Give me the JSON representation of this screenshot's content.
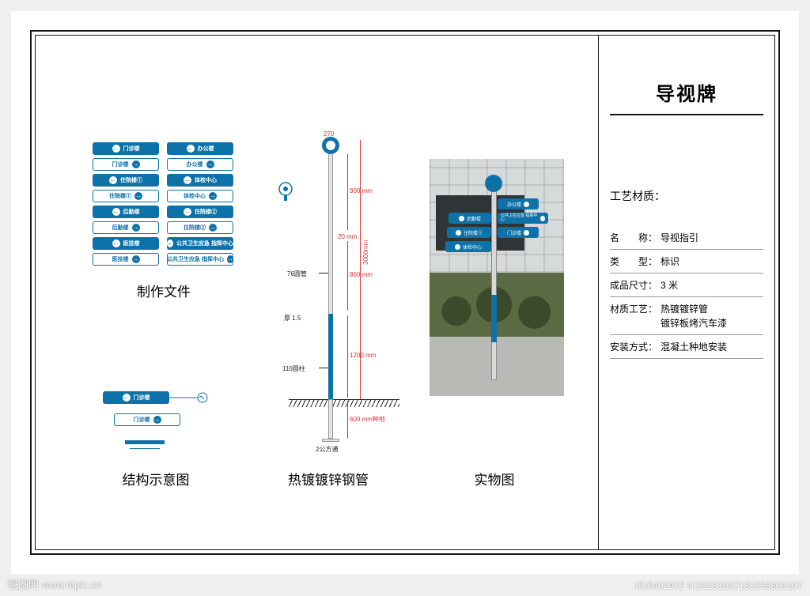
{
  "colors": {
    "brand": "#0d72a8",
    "frame": "#161616",
    "dim": "#d33333",
    "page_bg": "#efefef",
    "sheet_bg": "#ffffff"
  },
  "title": "导视牌",
  "section_heading": "工艺材质：",
  "info_rows": [
    {
      "label": "名　　称：",
      "value": "导视指引"
    },
    {
      "label": "类　　型：",
      "value": "标识"
    },
    {
      "label": "成品尺寸：",
      "value": "3 米"
    },
    {
      "label": "材质工艺：",
      "value": "热镀镀锌管\n镀锌板烤汽车漆"
    },
    {
      "label": "安装方式：",
      "value": "混凝土种地安装"
    }
  ],
  "captions": {
    "plates": "制作文件",
    "structure": "结构示意图",
    "pole": "热镀镀锌钢管",
    "photo": "实物图"
  },
  "plate_groups": [
    [
      {
        "text": "门诊楼",
        "dir": "left",
        "style": "solid"
      },
      {
        "text": "办公楼",
        "dir": "left",
        "style": "solid"
      }
    ],
    [
      {
        "text": "门诊楼",
        "dir": "right",
        "style": "outline"
      },
      {
        "text": "办公楼",
        "dir": "right",
        "style": "outline"
      }
    ],
    [
      {
        "text": "住院楼①",
        "dir": "left",
        "style": "solid"
      },
      {
        "text": "体检中心",
        "dir": "left",
        "style": "solid"
      }
    ],
    [
      {
        "text": "住院楼①",
        "dir": "right",
        "style": "outline"
      },
      {
        "text": "体检中心",
        "dir": "right",
        "style": "outline"
      }
    ],
    [
      {
        "text": "后勤楼",
        "dir": "left",
        "style": "solid"
      },
      {
        "text": "住院楼②",
        "dir": "left",
        "style": "solid"
      }
    ],
    [
      {
        "text": "后勤楼",
        "dir": "right",
        "style": "outline"
      },
      {
        "text": "住院楼②",
        "dir": "right",
        "style": "outline"
      }
    ],
    [
      {
        "text": "医技楼",
        "dir": "left",
        "style": "solid"
      },
      {
        "text": "公共卫生应急\n指挥中心",
        "dir": "left",
        "style": "solid"
      }
    ],
    [
      {
        "text": "医技楼",
        "dir": "right",
        "style": "outline"
      },
      {
        "text": "公共卫生应急\n指挥中心",
        "dir": "right",
        "style": "outline"
      }
    ]
  ],
  "struct_plates": [
    {
      "text": "门诊楼",
      "dir": "left",
      "style": "solid"
    },
    {
      "text": "门诊楼",
      "dir": "right",
      "style": "outline"
    }
  ],
  "pole_dims": {
    "head": "270",
    "upper": "900 mm",
    "mid_gap": "20 mm",
    "upper2": "860 mm",
    "total": "3000mm",
    "lower": "1200 mm",
    "buried": "600 mm种地",
    "base_note": "2公方通",
    "thick": "厚 1.5",
    "bracket_top": "76圆管",
    "bracket_bot": "110圆柱"
  },
  "photo_plates": {
    "right_top": "办公楼",
    "left1": "后勤楼",
    "left2": "住院楼①",
    "left3": "体检中心",
    "right2": "公共卫生应急\n指挥中心",
    "right3": "门诊楼"
  },
  "watermark": {
    "left": "昵图网  www.nipic.cn",
    "right": "ID:6402972  N:20231007181056806107"
  }
}
